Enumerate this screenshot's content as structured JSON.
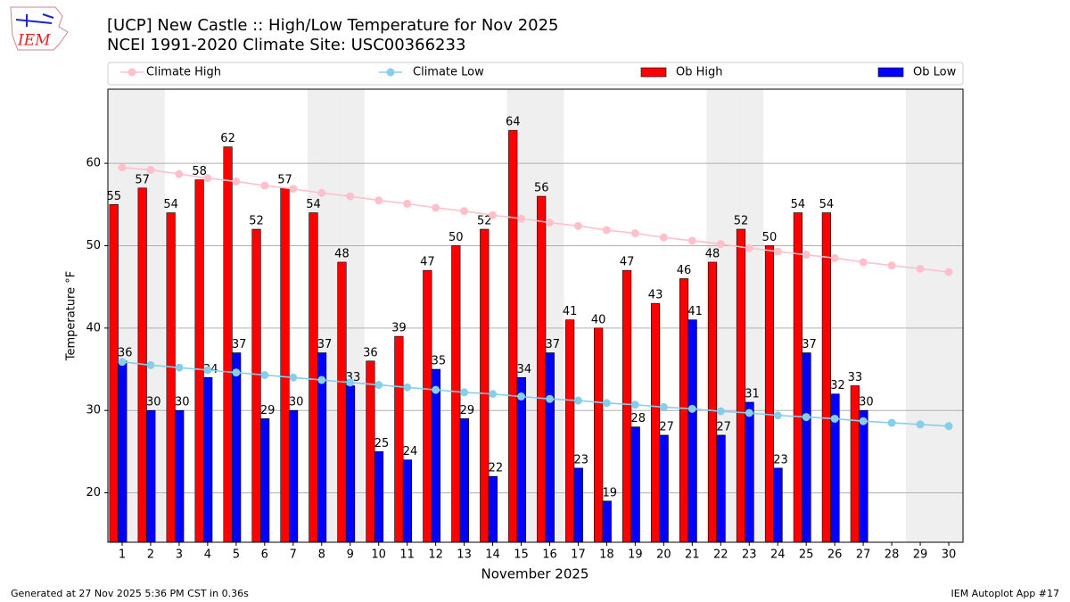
{
  "chart_data": {
    "type": "bar",
    "title": "[UCP] New Castle :: High/Low Temperature for Nov 2025",
    "subtitle": "NCEI 1991-2020 Climate Site: USC00366233",
    "x_label": "November 2025",
    "y_label": "Temperature °F",
    "footer_left": "Generated at 27 Nov 2025 5:36 PM CST in 0.36s",
    "footer_right": "IEM Autoplot App #17",
    "logo_text": "IEM",
    "x": [
      1,
      2,
      3,
      4,
      5,
      6,
      7,
      8,
      9,
      10,
      11,
      12,
      13,
      14,
      15,
      16,
      17,
      18,
      19,
      20,
      21,
      22,
      23,
      24,
      25,
      26,
      27,
      28,
      29,
      30
    ],
    "xlim": [
      0.5,
      30.5
    ],
    "xticks": [
      1,
      2,
      3,
      4,
      5,
      6,
      7,
      8,
      9,
      10,
      11,
      12,
      13,
      14,
      15,
      16,
      17,
      18,
      19,
      20,
      21,
      22,
      23,
      24,
      25,
      26,
      27,
      28,
      29,
      30
    ],
    "ylim": [
      14,
      69
    ],
    "yticks": [
      20,
      30,
      40,
      50,
      60
    ],
    "grid": true,
    "shaded_days": [
      1,
      2,
      8,
      9,
      15,
      16,
      22,
      23,
      29,
      30
    ],
    "shade_color": "#efefef",
    "series": [
      {
        "name": "Climate High",
        "type": "line",
        "color": "#ffc0cb",
        "values": [
          59.5,
          59.2,
          58.7,
          58.2,
          57.8,
          57.3,
          56.9,
          56.4,
          56.0,
          55.5,
          55.1,
          54.6,
          54.2,
          53.7,
          53.3,
          52.8,
          52.4,
          51.9,
          51.5,
          51.0,
          50.6,
          50.2,
          49.7,
          49.3,
          48.9,
          48.5,
          48.0,
          47.6,
          47.2,
          46.8
        ]
      },
      {
        "name": "Climate Low",
        "type": "line",
        "color": "#87ceeb",
        "values": [
          35.9,
          35.5,
          35.2,
          34.9,
          34.6,
          34.3,
          34.0,
          33.7,
          33.4,
          33.1,
          32.8,
          32.5,
          32.2,
          32.0,
          31.7,
          31.4,
          31.2,
          30.9,
          30.7,
          30.4,
          30.2,
          29.9,
          29.7,
          29.4,
          29.2,
          29.0,
          28.7,
          28.5,
          28.3,
          28.1
        ]
      },
      {
        "name": "Ob High",
        "type": "bar",
        "color": "#ff0000",
        "values": [
          55,
          57,
          54,
          58,
          62,
          52,
          57,
          54,
          48,
          36,
          39,
          47,
          50,
          52,
          64,
          56,
          41,
          40,
          47,
          43,
          46,
          48,
          52,
          50,
          54,
          54,
          33,
          null,
          null,
          null
        ]
      },
      {
        "name": "Ob Low",
        "type": "bar",
        "color": "#0000ff",
        "values": [
          36,
          30,
          30,
          34,
          37,
          29,
          30,
          37,
          33,
          25,
          24,
          35,
          29,
          22,
          34,
          37,
          23,
          19,
          28,
          27,
          41,
          27,
          31,
          23,
          37,
          32,
          30,
          null,
          null,
          null
        ]
      }
    ]
  }
}
